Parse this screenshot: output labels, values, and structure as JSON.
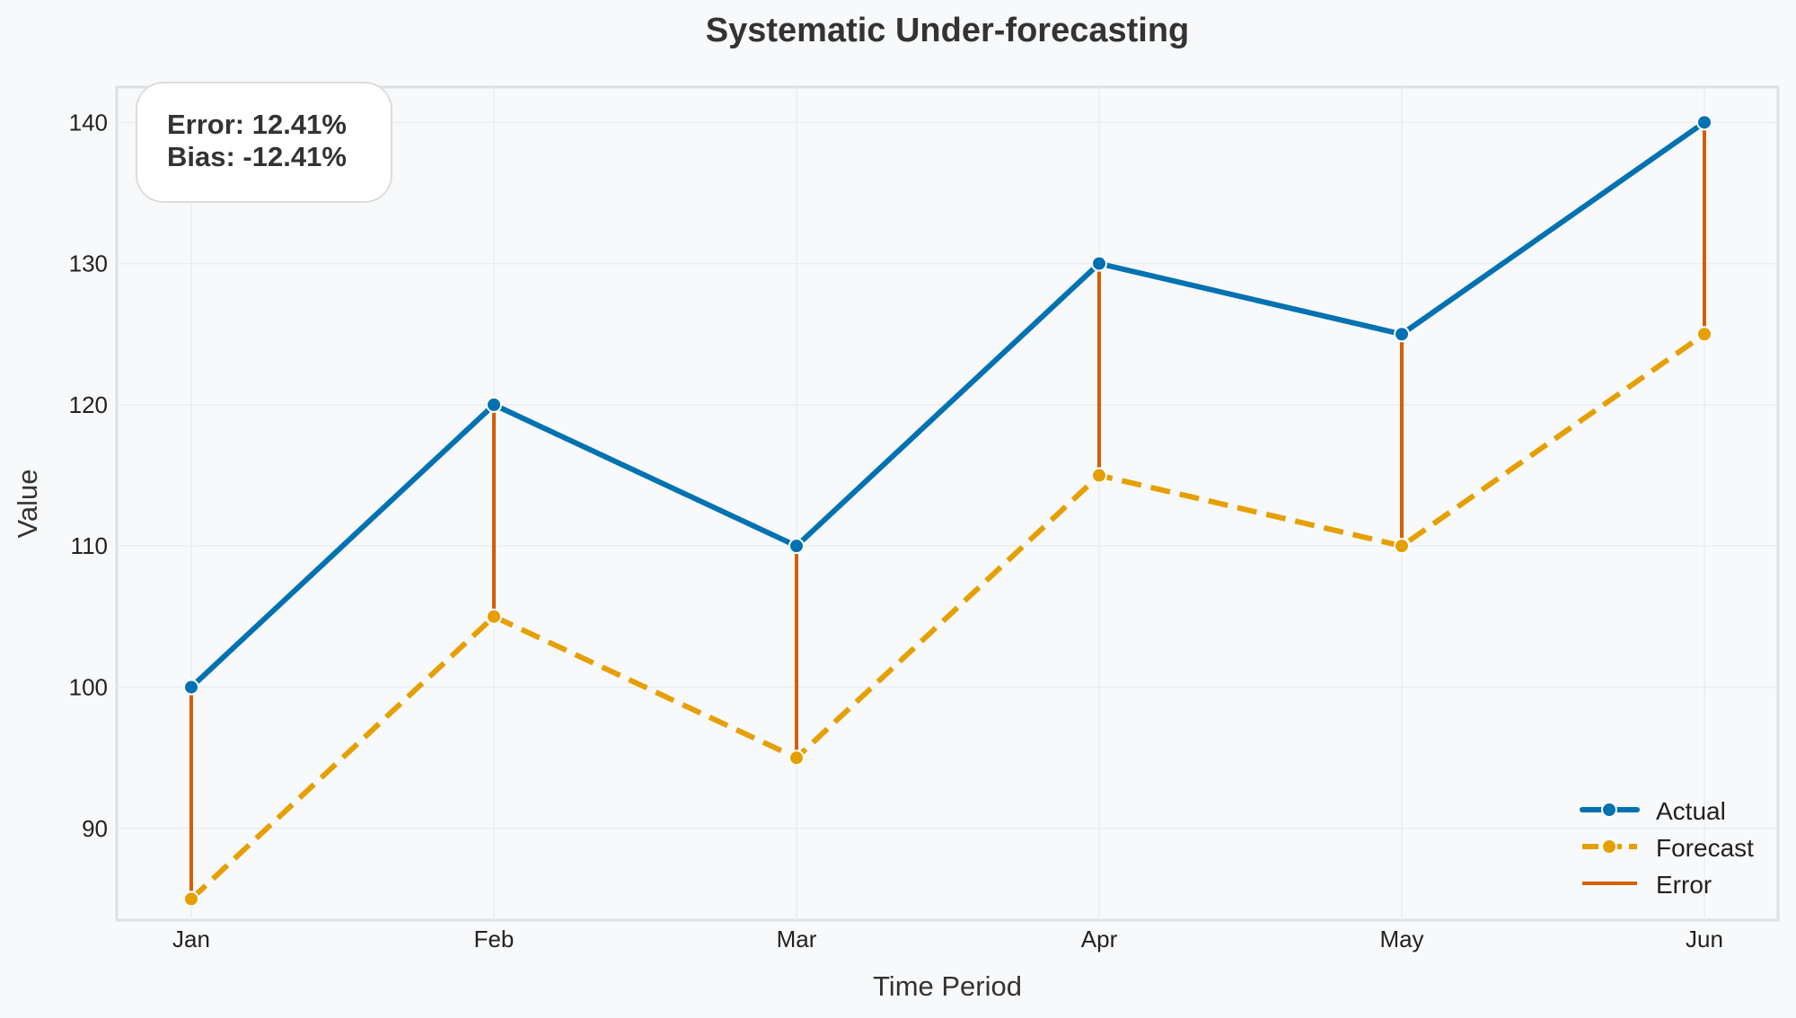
{
  "chart_data": {
    "type": "line",
    "title": "Systematic Under-forecasting",
    "xlabel": "Time Period",
    "ylabel": "Value",
    "categories": [
      "Jan",
      "Feb",
      "Mar",
      "Apr",
      "May",
      "Jun"
    ],
    "series": [
      {
        "name": "Actual",
        "values": [
          100,
          120,
          110,
          130,
          125,
          140
        ],
        "color": "#0072b2",
        "style": "solid",
        "marker": "circle"
      },
      {
        "name": "Forecast",
        "values": [
          85,
          105,
          95,
          115,
          110,
          125
        ],
        "color": "#e69f00",
        "style": "dashed",
        "marker": "circle"
      }
    ],
    "error_lines": {
      "name": "Error",
      "color": "#d55e00",
      "from": "Actual",
      "to": "Forecast"
    },
    "ylim": [
      83.5,
      142.5
    ],
    "yticks": [
      "90",
      "100",
      "110",
      "120",
      "130",
      "140"
    ],
    "ytick_values": [
      90,
      100,
      110,
      120,
      130,
      140
    ],
    "grid": true,
    "legend_position": "bottom-right",
    "legend": [
      "Actual",
      "Forecast",
      "Error"
    ],
    "annotation": {
      "error_text": "Error: 12.41%",
      "bias_text": "Bias: -12.41%",
      "position": "top-left"
    }
  }
}
